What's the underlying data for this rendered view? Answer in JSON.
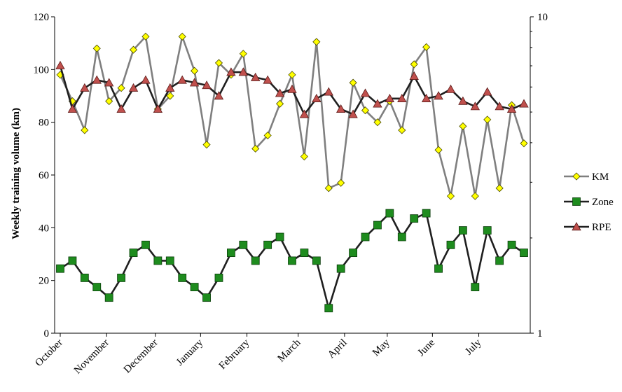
{
  "chart_data": {
    "type": "line",
    "ylabel": "Weekly training volume (km)",
    "xlabel": "",
    "ylim": [
      0,
      120
    ],
    "y_ticks": [
      "0",
      "20",
      "40",
      "60",
      "80",
      "100",
      "120"
    ],
    "y2_ticks": [
      "1",
      "10"
    ],
    "y2_scale": "log",
    "y2lim": [
      1,
      10
    ],
    "legend_position": "right",
    "grid": false,
    "month_labels": [
      "October",
      "November",
      "December",
      "January",
      "February",
      "March",
      "April",
      "May",
      "June",
      "July"
    ],
    "month_week_index": [
      0,
      3.8,
      7.8,
      11.5,
      15.3,
      19.5,
      23.3,
      26.8,
      30.5,
      34.3
    ],
    "series": [
      {
        "name": "KM",
        "color": "#7f7f7f",
        "marker": "diamond",
        "marker_fill": "#ffff00",
        "axis": "left",
        "values": [
          98,
          88,
          77,
          108,
          88,
          93,
          107.5,
          112.5,
          85,
          90,
          112.5,
          99.5,
          71.5,
          102.5,
          98,
          106,
          70,
          75,
          87,
          98,
          67,
          110.5,
          55,
          57,
          95,
          84.5,
          80,
          88,
          77,
          102,
          108.5,
          69.5,
          52,
          78.5,
          52,
          81,
          55,
          86.5,
          72
        ]
      },
      {
        "name": "Zone",
        "color": "#1f1f1f",
        "marker": "square",
        "marker_fill": "#1e8c1e",
        "axis": "left",
        "values": [
          24.5,
          27.5,
          21,
          17.5,
          13.5,
          21,
          30.5,
          33.5,
          27.5,
          27.5,
          21,
          17.5,
          13.5,
          21,
          30.5,
          33.5,
          27.5,
          33.5,
          36.5,
          27.5,
          30.5,
          27.5,
          9.5,
          24.5,
          30.5,
          36.5,
          41,
          45.5,
          36.5,
          43.5,
          45.5,
          24.5,
          33.5,
          39,
          17.5,
          39,
          27.5,
          33.5,
          30.5
        ]
      },
      {
        "name": "RPE",
        "color": "#1f1f1f",
        "marker": "triangle",
        "marker_fill": "#c0504d",
        "axis": "left",
        "values": [
          101.5,
          85,
          93,
          96,
          95,
          85,
          93,
          96,
          85,
          93,
          96,
          95,
          94,
          90,
          99,
          99,
          97,
          96,
          91,
          92.5,
          83,
          89,
          91.5,
          85,
          83,
          91,
          87,
          89,
          89,
          97.5,
          89,
          90,
          92.5,
          88,
          86,
          91.5,
          86,
          85,
          87
        ]
      }
    ]
  }
}
